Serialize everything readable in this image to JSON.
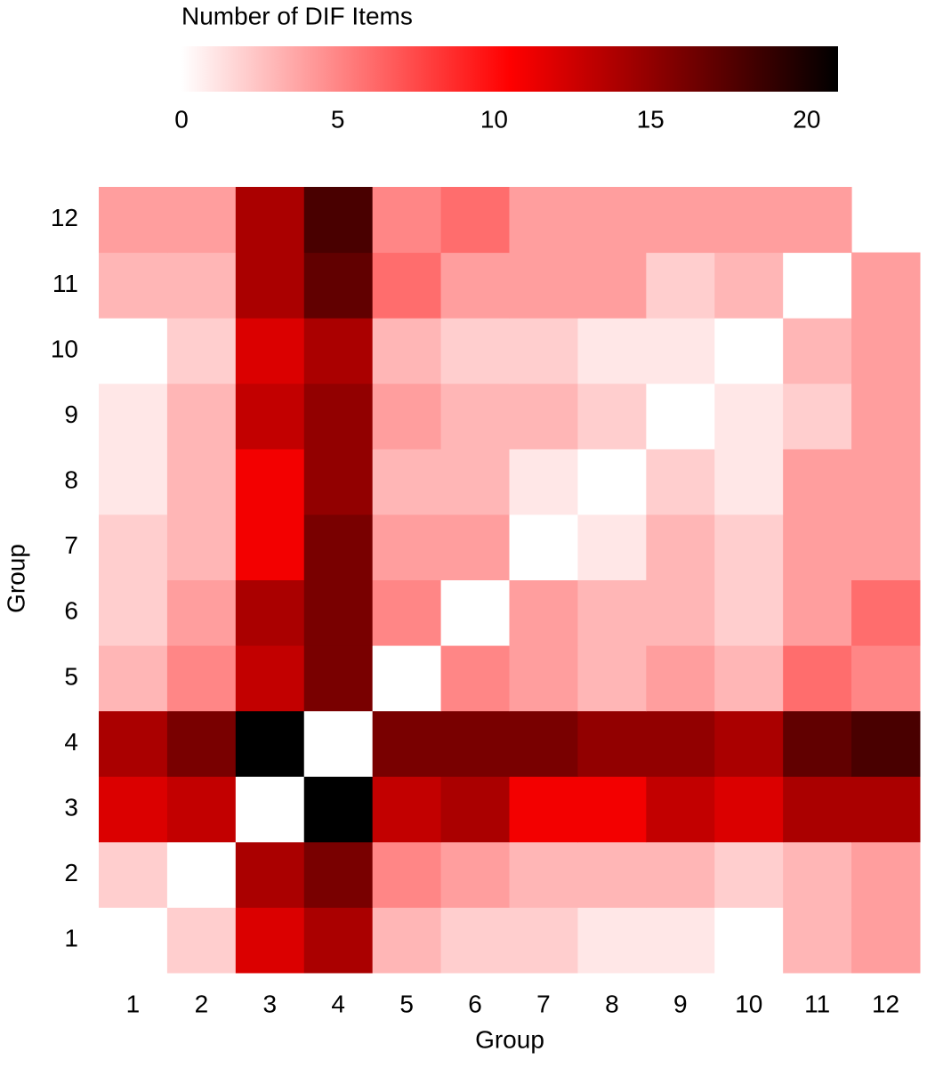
{
  "chart_data": {
    "type": "heatmap",
    "xlabel": "Group",
    "ylabel": "Group",
    "x": [
      1,
      2,
      3,
      4,
      5,
      6,
      7,
      8,
      9,
      10,
      11,
      12
    ],
    "y": [
      1,
      2,
      3,
      4,
      5,
      6,
      7,
      8,
      9,
      10,
      11,
      12
    ],
    "z": [
      [
        null,
        2,
        12,
        14,
        3,
        2,
        2,
        1,
        1,
        0,
        3,
        4
      ],
      [
        2,
        0,
        14,
        16,
        5,
        4,
        3,
        3,
        3,
        2,
        3,
        4
      ],
      [
        12,
        13,
        0,
        21,
        13,
        14,
        11,
        11,
        13,
        12,
        14,
        14
      ],
      [
        14,
        16,
        21,
        0,
        16,
        16,
        16,
        15,
        15,
        14,
        17,
        18
      ],
      [
        3,
        5,
        13,
        16,
        0,
        5,
        4,
        3,
        4,
        3,
        6,
        5
      ],
      [
        2,
        4,
        14,
        16,
        5,
        0,
        4,
        3,
        3,
        2,
        4,
        6
      ],
      [
        2,
        3,
        11,
        16,
        4,
        4,
        0,
        1,
        3,
        2,
        4,
        4
      ],
      [
        1,
        3,
        11,
        15,
        3,
        3,
        1,
        0,
        2,
        1,
        4,
        4
      ],
      [
        1,
        3,
        13,
        15,
        4,
        3,
        3,
        2,
        0,
        1,
        2,
        4
      ],
      [
        0,
        2,
        12,
        14,
        3,
        2,
        2,
        1,
        1,
        0,
        3,
        4
      ],
      [
        3,
        3,
        14,
        17,
        6,
        4,
        4,
        4,
        2,
        3,
        0,
        4
      ],
      [
        4,
        4,
        14,
        18,
        5,
        6,
        4,
        4,
        4,
        4,
        4,
        null
      ]
    ],
    "colorbar": {
      "title": "Number of DIF Items",
      "lim": [
        0,
        21
      ],
      "ticks": [
        0,
        5,
        10,
        15,
        20
      ]
    },
    "colorscale": [
      [
        0,
        "#ffffff"
      ],
      [
        10.5,
        "#ff0000"
      ],
      [
        21,
        "#000000"
      ]
    ]
  }
}
